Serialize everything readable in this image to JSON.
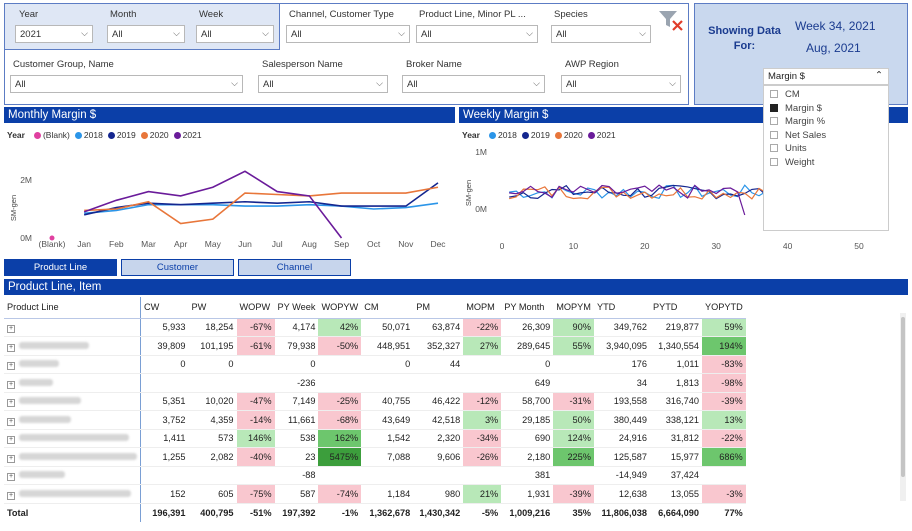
{
  "filters": {
    "year": {
      "label": "Year",
      "value": "2021"
    },
    "month": {
      "label": "Month",
      "value": "All"
    },
    "week": {
      "label": "Week",
      "value": "All"
    },
    "channel": {
      "label": "Channel, Customer Type",
      "value": "All"
    },
    "product_line": {
      "label": "Product Line, Minor PL ...",
      "value": "All"
    },
    "species": {
      "label": "Species",
      "value": "All"
    },
    "customer_group": {
      "label": "Customer Group, Name",
      "value": "All"
    },
    "salesperson": {
      "label": "Salesperson Name",
      "value": "All"
    },
    "broker": {
      "label": "Broker Name",
      "value": "All"
    },
    "awp_region": {
      "label": "AWP Region",
      "value": "All"
    }
  },
  "showing": {
    "label_line1": "Showing Data",
    "label_line2": "For:",
    "week": "Week 34, 2021",
    "month": "Aug, 2021"
  },
  "measure_dropdown": {
    "selected": "Margin $",
    "options": [
      {
        "label": "CM",
        "checked": false
      },
      {
        "label": "Margin $",
        "checked": true
      },
      {
        "label": "Margin %",
        "checked": false
      },
      {
        "label": "Net Sales",
        "checked": false
      },
      {
        "label": "Units",
        "checked": false
      },
      {
        "label": "Weight",
        "checked": false
      }
    ]
  },
  "monthly_chart": {
    "title": "Monthly Margin $",
    "legend_title": "Year",
    "legend": [
      {
        "name": "(Blank)",
        "color": "#e040a0"
      },
      {
        "name": "2018",
        "color": "#2b95e8"
      },
      {
        "name": "2019",
        "color": "#14268f"
      },
      {
        "name": "2020",
        "color": "#e8763a"
      },
      {
        "name": "2021",
        "color": "#6a1b9a"
      }
    ],
    "ylabel": "SM-gen",
    "yticks": [
      "2M",
      "0M"
    ]
  },
  "weekly_chart": {
    "title_prefix": "Weekly",
    "title": "Margin $",
    "legend_title": "Year",
    "ylabel": "SM-gen",
    "yticks": [
      "1M",
      "0M"
    ],
    "xticks": [
      "0",
      "10",
      "20",
      "30",
      "40",
      "50"
    ]
  },
  "chart_data": [
    {
      "type": "line",
      "categories": [
        "(Blank)",
        "Jan",
        "Feb",
        "Mar",
        "Apr",
        "May",
        "Jun",
        "Jul",
        "Aug",
        "Sep",
        "Oct",
        "Nov",
        "Dec"
      ],
      "ylim": [
        0,
        3
      ],
      "series": [
        {
          "name": "(Blank)",
          "color": "#e040a0",
          "values": [
            0,
            null,
            null,
            null,
            null,
            null,
            null,
            null,
            null,
            null,
            null,
            null,
            null
          ]
        },
        {
          "name": "2018",
          "color": "#2b95e8",
          "values": [
            null,
            0.85,
            0.95,
            1.15,
            1.15,
            1.15,
            1.1,
            1.1,
            1.15,
            1.1,
            1.0,
            1.05,
            1.2
          ]
        },
        {
          "name": "2019",
          "color": "#14268f",
          "values": [
            null,
            0.8,
            1.05,
            1.2,
            1.15,
            1.2,
            1.25,
            1.2,
            1.25,
            1.1,
            1.1,
            1.1,
            1.9
          ]
        },
        {
          "name": "2020",
          "color": "#e8763a",
          "values": [
            null,
            0.95,
            1.0,
            1.25,
            0.5,
            0.65,
            1.55,
            1.5,
            1.45,
            1.55,
            1.55,
            1.55,
            1.75
          ]
        },
        {
          "name": "2021",
          "color": "#6a1b9a",
          "values": [
            null,
            0.9,
            1.3,
            1.6,
            1.45,
            1.75,
            2.3,
            1.6,
            1.45,
            0.0,
            null,
            null,
            null
          ]
        }
      ]
    },
    {
      "type": "line",
      "x_range": [
        1,
        52
      ],
      "ylim": [
        -0.5,
        1.5
      ],
      "series": [
        {
          "name": "2018",
          "color": "#2b95e8"
        },
        {
          "name": "2019",
          "color": "#14268f"
        },
        {
          "name": "2020",
          "color": "#e8763a"
        },
        {
          "name": "2021",
          "color": "#6a1b9a"
        }
      ]
    }
  ],
  "tabs": [
    "Product Line",
    "Customer",
    "Channel"
  ],
  "table": {
    "title": "Product Line, Item",
    "columns": [
      "Product Line",
      "CW",
      "PW",
      "WOPW",
      "PY Week",
      "WOPYW",
      "CM",
      "PM",
      "MOPM",
      "PY Month",
      "MOPYM",
      "YTD",
      "PYTD",
      "YOPYTD"
    ],
    "rows": [
      [
        "",
        "5,933",
        "18,254",
        "-67%",
        "4,174",
        "42%",
        "50,071",
        "63,874",
        "-22%",
        "26,309",
        "90%",
        "349,762",
        "219,877",
        "59%"
      ],
      [
        "",
        "39,809",
        "101,195",
        "-61%",
        "79,938",
        "-50%",
        "448,951",
        "352,327",
        "27%",
        "289,645",
        "55%",
        "3,940,095",
        "1,340,554",
        "194%"
      ],
      [
        "",
        "0",
        "0",
        "",
        "0",
        "",
        "0",
        "44",
        "",
        "0",
        "",
        "176",
        "1,011",
        "-83%"
      ],
      [
        "",
        "",
        "",
        "",
        "-236",
        "",
        "",
        "",
        "",
        "649",
        "",
        "34",
        "1,813",
        "-98%"
      ],
      [
        "",
        "5,351",
        "10,020",
        "-47%",
        "7,149",
        "-25%",
        "40,755",
        "46,422",
        "-12%",
        "58,700",
        "-31%",
        "193,558",
        "316,740",
        "-39%"
      ],
      [
        "",
        "3,752",
        "4,359",
        "-14%",
        "11,661",
        "-68%",
        "43,649",
        "42,518",
        "3%",
        "29,185",
        "50%",
        "380,449",
        "338,121",
        "13%"
      ],
      [
        "",
        "1,411",
        "573",
        "146%",
        "538",
        "162%",
        "1,542",
        "2,320",
        "-34%",
        "690",
        "124%",
        "24,916",
        "31,812",
        "-22%"
      ],
      [
        "",
        "1,255",
        "2,082",
        "-40%",
        "23",
        "5475%",
        "7,088",
        "9,606",
        "-26%",
        "2,180",
        "225%",
        "125,587",
        "15,977",
        "686%"
      ],
      [
        "",
        "",
        "",
        "",
        "-88",
        "",
        "",
        "",
        "",
        "381",
        "",
        "-14,949",
        "37,424",
        ""
      ],
      [
        "",
        "152",
        "605",
        "-75%",
        "587",
        "-74%",
        "1,184",
        "980",
        "21%",
        "1,931",
        "-39%",
        "12,638",
        "13,055",
        "-3%"
      ]
    ],
    "total": [
      "Total",
      "196,391",
      "400,795",
      "-51%",
      "197,392",
      "-1%",
      "1,362,678",
      "1,430,342",
      "-5%",
      "1,009,216",
      "35%",
      "11,806,038",
      "6,664,090",
      "77%"
    ]
  }
}
